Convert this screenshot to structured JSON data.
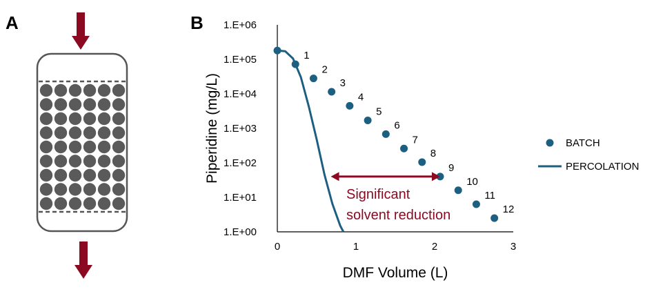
{
  "panels": {
    "a_label": "A",
    "b_label": "B"
  },
  "colors": {
    "arrow": "#8b0a22",
    "beads": "#5a5a5a",
    "column_outline": "#555555",
    "series": "#1c5f80",
    "annotation": "#8b0a22"
  },
  "chart_data": {
    "type": "scatter",
    "xlabel": "DMF Volume (L)",
    "ylabel": "Piperidine (mg/L)",
    "xlim": [
      0,
      3
    ],
    "ylim": [
      1,
      1000000
    ],
    "yscale": "log",
    "x_ticks": [
      "0",
      "1",
      "2",
      "3"
    ],
    "y_ticks": [
      "1.E+00",
      "1.E+01",
      "1.E+02",
      "1.E+03",
      "1.E+04",
      "1.E+05",
      "1.E+06"
    ],
    "legend": [
      "BATCH",
      "PERCOLATION"
    ],
    "legend_position": "right",
    "series": [
      {
        "name": "BATCH",
        "kind": "scatter",
        "labels": [
          "1",
          "2",
          "3",
          "4",
          "5",
          "6",
          "7",
          "8",
          "9",
          "10",
          "11",
          "12"
        ],
        "x": [
          0.0,
          0.23,
          0.46,
          0.69,
          0.92,
          1.15,
          1.38,
          1.61,
          1.84,
          2.07,
          2.3,
          2.53,
          2.76
        ],
        "y": [
          180000,
          72000,
          28000,
          11500,
          4500,
          1700,
          680,
          260,
          105,
          40,
          16,
          6.3,
          2.5
        ],
        "point_labels_for": [
          1,
          2,
          3,
          4,
          5,
          6,
          7,
          8,
          9,
          10,
          11,
          12
        ]
      },
      {
        "name": "PERCOLATION",
        "kind": "line",
        "x": [
          0,
          0.1,
          0.2,
          0.3,
          0.4,
          0.5,
          0.6,
          0.7,
          0.8,
          0.84
        ],
        "y": [
          180000,
          172000,
          105000,
          30000,
          4300,
          480,
          45,
          6.5,
          1.5,
          1.0
        ]
      }
    ],
    "annotation": {
      "text_line1": "Significant",
      "text_line2": "solvent reduction",
      "arrow_from_x": 0.68,
      "arrow_to_x": 2.07,
      "arrow_y": 40
    }
  }
}
